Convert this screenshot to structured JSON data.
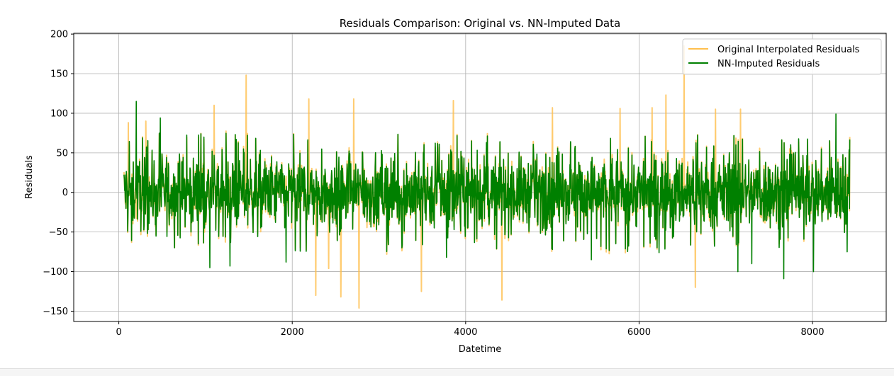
{
  "chart_data": {
    "type": "line",
    "title": "Residuals Comparison: Original vs. NN-Imputed Data",
    "xlabel": "Datetime",
    "ylabel": "Residuals",
    "xlim": [
      -520,
      8850
    ],
    "ylim": [
      -163,
      201
    ],
    "xticks": [
      0,
      2000,
      4000,
      6000,
      8000
    ],
    "xtick_labels": [
      "0",
      "2000",
      "4000",
      "6000",
      "8000"
    ],
    "yticks": [
      -150,
      -100,
      -50,
      0,
      50,
      100,
      150,
      200
    ],
    "ytick_labels": [
      "−150",
      "−100",
      "−50",
      "0",
      "50",
      "100",
      "150",
      "200"
    ],
    "grid": true,
    "legend_position": "top-right",
    "series": [
      {
        "name": "Original Interpolated Residuals",
        "color": "#ffbf4d",
        "x_start": 60,
        "x_end": 8430,
        "spikes": [
          [
            110,
            88
          ],
          [
            310,
            90
          ],
          [
            1100,
            110
          ],
          [
            1470,
            148
          ],
          [
            2190,
            118
          ],
          [
            2270,
            -130
          ],
          [
            2420,
            -96
          ],
          [
            2560,
            -132
          ],
          [
            2710,
            118
          ],
          [
            2770,
            -146
          ],
          [
            3490,
            -125
          ],
          [
            3860,
            116
          ],
          [
            4420,
            -136
          ],
          [
            5000,
            107
          ],
          [
            5780,
            106
          ],
          [
            6150,
            107
          ],
          [
            6310,
            123
          ],
          [
            6520,
            185
          ],
          [
            6650,
            -120
          ],
          [
            6880,
            105
          ],
          [
            7170,
            105
          ]
        ]
      },
      {
        "name": "NN-Imputed Residuals",
        "color": "#008000",
        "x_start": 60,
        "x_end": 8430,
        "spikes": [
          [
            200,
            115
          ],
          [
            480,
            94
          ],
          [
            1050,
            -95
          ],
          [
            1280,
            -93
          ],
          [
            1930,
            -88
          ],
          [
            3780,
            -82
          ],
          [
            5450,
            -85
          ],
          [
            6230,
            -76
          ],
          [
            7140,
            -100
          ],
          [
            7300,
            -90
          ],
          [
            7670,
            -109
          ],
          [
            8010,
            -100
          ],
          [
            8270,
            99
          ],
          [
            8400,
            -75
          ]
        ]
      }
    ]
  }
}
